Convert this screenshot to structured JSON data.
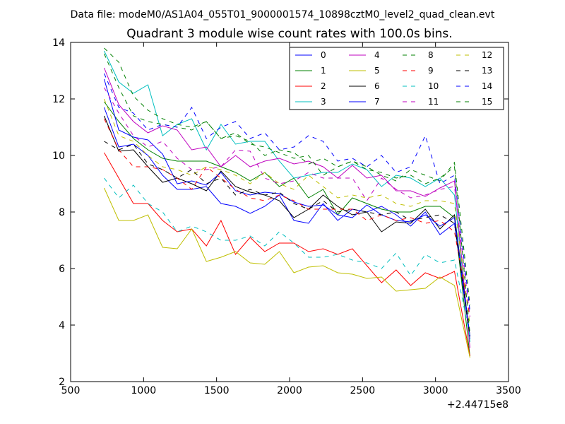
{
  "chart_data": {
    "type": "line",
    "suptitle": "Data file: modeM0/AS1A04_055T01_9000001574_10898cztM0_level2_quad_clean.evt",
    "title": "Quadrant 3 module wise count rates with 100.0s bins.",
    "xlabel": "",
    "ylabel": "",
    "x_offset_label": "+2.44715e8",
    "xlim": [
      500,
      3500
    ],
    "ylim": [
      2,
      14
    ],
    "xticks": [
      500,
      1000,
      1500,
      2000,
      2500,
      3000,
      3500
    ],
    "yticks": [
      2,
      4,
      6,
      8,
      10,
      12,
      14
    ],
    "grid": false,
    "legend_position": "top-right",
    "x": [
      730,
      830,
      930,
      1030,
      1130,
      1230,
      1330,
      1430,
      1530,
      1630,
      1730,
      1830,
      1930,
      2030,
      2130,
      2230,
      2330,
      2430,
      2530,
      2630,
      2730,
      2830,
      2930,
      3030,
      3130,
      3236
    ],
    "series": [
      {
        "name": "0",
        "color": "#0000ff",
        "dash": "solid",
        "values": [
          11.7,
          10.3,
          10.4,
          10.0,
          9.3,
          8.8,
          8.8,
          8.9,
          8.3,
          8.2,
          7.95,
          8.2,
          8.6,
          7.7,
          7.6,
          8.3,
          7.7,
          8.1,
          8.0,
          8.2,
          7.9,
          7.5,
          8.0,
          7.2,
          7.6,
          3.5
        ]
      },
      {
        "name": "1",
        "color": "#008000",
        "dash": "solid",
        "values": [
          11.9,
          11.2,
          10.6,
          10.2,
          9.9,
          9.8,
          9.8,
          9.8,
          9.6,
          9.4,
          9.1,
          9.4,
          8.9,
          9.2,
          8.5,
          8.8,
          7.9,
          8.5,
          8.3,
          8.1,
          8.0,
          8.0,
          8.2,
          8.2,
          7.8,
          2.9
        ]
      },
      {
        "name": "2",
        "color": "#ff0000",
        "dash": "solid",
        "values": [
          10.1,
          9.2,
          8.3,
          8.3,
          7.7,
          7.3,
          7.4,
          6.8,
          7.7,
          6.5,
          7.1,
          6.6,
          6.9,
          6.9,
          6.6,
          6.7,
          6.5,
          6.7,
          6.1,
          5.5,
          5.95,
          5.4,
          5.85,
          5.65,
          5.9,
          2.9
        ]
      },
      {
        "name": "3",
        "color": "#00bfbf",
        "dash": "solid",
        "values": [
          13.7,
          12.6,
          12.2,
          12.5,
          10.7,
          11.1,
          11.3,
          10.2,
          11.1,
          10.4,
          10.5,
          10.5,
          9.8,
          9.2,
          9.3,
          9.4,
          9.4,
          9.7,
          9.5,
          8.9,
          9.3,
          9.2,
          8.9,
          9.2,
          8.6,
          3.4
        ]
      },
      {
        "name": "4",
        "color": "#bf00bf",
        "dash": "solid",
        "values": [
          13.1,
          11.8,
          11.2,
          10.8,
          11.05,
          10.9,
          10.2,
          10.3,
          9.6,
          10.0,
          9.6,
          9.8,
          9.9,
          9.7,
          9.8,
          9.6,
          9.2,
          9.65,
          9.2,
          9.3,
          8.75,
          8.75,
          8.55,
          8.85,
          9.1,
          3.2
        ]
      },
      {
        "name": "5",
        "color": "#bfbf00",
        "dash": "solid",
        "values": [
          8.85,
          7.7,
          7.7,
          7.9,
          6.75,
          6.7,
          7.4,
          6.25,
          6.4,
          6.6,
          6.2,
          6.15,
          6.6,
          5.85,
          6.05,
          6.1,
          5.85,
          5.8,
          5.65,
          5.7,
          5.2,
          5.25,
          5.3,
          5.7,
          5.4,
          2.85
        ]
      },
      {
        "name": "6",
        "color": "#000000",
        "dash": "solid",
        "values": [
          11.4,
          10.15,
          10.2,
          9.6,
          9.05,
          9.2,
          9.0,
          8.75,
          9.45,
          8.9,
          8.7,
          8.6,
          8.4,
          7.8,
          8.1,
          8.6,
          8.2,
          7.9,
          8.0,
          7.3,
          7.65,
          7.6,
          8.1,
          7.4,
          7.9,
          3.6
        ]
      },
      {
        "name": "7",
        "color": "#0000ff",
        "dash": "solid",
        "values": [
          12.7,
          10.9,
          10.65,
          10.55,
          10.05,
          9.0,
          9.1,
          8.95,
          9.4,
          8.75,
          8.6,
          8.7,
          8.65,
          8.35,
          8.2,
          8.25,
          7.9,
          7.8,
          8.25,
          7.9,
          7.7,
          7.65,
          7.9,
          7.5,
          7.8,
          3.6
        ]
      },
      {
        "name": "8",
        "color": "#008000",
        "dash": "dashed",
        "values": [
          13.6,
          12.4,
          11.4,
          11.2,
          11.1,
          11.0,
          10.9,
          11.2,
          10.6,
          10.8,
          10.4,
          10.3,
          10.1,
          9.9,
          10.0,
          9.3,
          9.6,
          9.8,
          9.6,
          9.3,
          9.1,
          9.5,
          9.3,
          9.1,
          9.75,
          4.7
        ]
      },
      {
        "name": "9",
        "color": "#ff0000",
        "dash": "dashed",
        "values": [
          11.3,
          10.2,
          9.6,
          9.6,
          9.5,
          9.2,
          8.8,
          9.6,
          9.2,
          8.8,
          8.5,
          8.4,
          8.6,
          8.4,
          8.1,
          8.1,
          8.1,
          8.1,
          7.7,
          7.9,
          7.7,
          7.8,
          7.6,
          7.7,
          7.3,
          4.3
        ]
      },
      {
        "name": "10",
        "color": "#00bfbf",
        "dash": "dashed",
        "values": [
          9.2,
          8.5,
          8.95,
          8.3,
          8.0,
          7.3,
          7.5,
          7.3,
          7.0,
          7.0,
          7.15,
          6.8,
          7.3,
          6.9,
          6.4,
          6.4,
          6.5,
          6.3,
          6.2,
          6.0,
          6.55,
          5.75,
          6.5,
          6.2,
          6.3,
          3.6
        ]
      },
      {
        "name": "11",
        "color": "#bf00bf",
        "dash": "dashed",
        "values": [
          12.4,
          11.5,
          10.7,
          10.3,
          10.5,
          9.9,
          9.5,
          9.5,
          9.6,
          10.2,
          10.15,
          9.2,
          9.0,
          9.1,
          9.4,
          9.2,
          9.2,
          9.2,
          8.4,
          9.2,
          8.8,
          8.5,
          8.6,
          8.8,
          8.9,
          4.3
        ]
      },
      {
        "name": "12",
        "color": "#bfbf00",
        "dash": "dashed",
        "values": [
          12.0,
          10.7,
          10.5,
          10.0,
          9.6,
          9.5,
          9.3,
          9.6,
          9.5,
          9.3,
          9.0,
          9.4,
          9.0,
          8.8,
          9.3,
          8.9,
          8.5,
          8.6,
          8.5,
          8.6,
          8.3,
          8.2,
          8.4,
          8.4,
          8.3,
          4.0
        ]
      },
      {
        "name": "13",
        "color": "#000000",
        "dash": "dashed",
        "values": [
          10.5,
          10.2,
          10.4,
          9.7,
          9.5,
          9.2,
          9.5,
          9.0,
          9.2,
          8.6,
          8.8,
          8.6,
          8.7,
          8.3,
          8.1,
          8.4,
          8.0,
          8.1,
          8.0,
          7.9,
          8.0,
          7.7,
          7.8,
          7.9,
          7.6,
          3.6
        ]
      },
      {
        "name": "14",
        "color": "#0000ff",
        "dash": "dashed",
        "values": [
          12.9,
          11.7,
          11.5,
          10.9,
          11.1,
          11.0,
          11.7,
          10.6,
          11.0,
          11.2,
          10.6,
          10.8,
          10.2,
          10.3,
          10.7,
          10.5,
          9.8,
          9.9,
          9.6,
          10.0,
          9.4,
          9.6,
          10.7,
          9.0,
          9.3,
          4.5
        ]
      },
      {
        "name": "15",
        "color": "#008000",
        "dash": "dashed",
        "values": [
          13.8,
          13.3,
          12.1,
          11.6,
          11.3,
          11.1,
          11.0,
          11.2,
          10.6,
          10.7,
          10.5,
          10.0,
          10.2,
          10.1,
          9.7,
          9.9,
          9.6,
          9.8,
          9.5,
          9.4,
          9.2,
          9.3,
          9.0,
          9.2,
          9.6,
          3.7
        ]
      }
    ]
  }
}
